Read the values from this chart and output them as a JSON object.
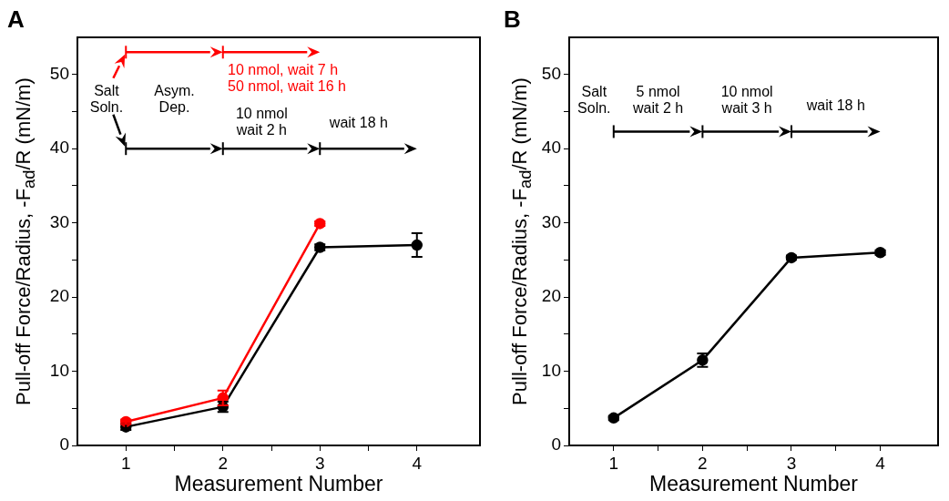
{
  "chart_data": [
    {
      "type": "line",
      "title": "A",
      "xlabel": "Measurement Number",
      "ylabel": "Pull-off Force/Radius, -F$_{ad}$/R (mN/m)",
      "xlim": [
        0.5,
        4.65
      ],
      "ylim": [
        0,
        55
      ],
      "xticks": [
        1,
        {
          "value": 1.5,
          "label": null
        },
        2,
        {
          "value": 2.5,
          "label": null
        },
        3,
        {
          "value": 3.5,
          "label": null
        },
        4
      ],
      "yticks": [
        0,
        {
          "value": 5,
          "label": null
        },
        10,
        {
          "value": 15,
          "label": null
        },
        20,
        {
          "value": 25,
          "label": null
        },
        30,
        {
          "value": 35,
          "label": null
        },
        40,
        {
          "value": 45,
          "label": null
        },
        50
      ],
      "grid": false,
      "legend": false,
      "marker": "circle",
      "line_style": "solid",
      "series": [
        {
          "color": "#000000",
          "x": [
            1,
            2,
            3,
            4
          ],
          "values": [
            2.5,
            5.2,
            26.7,
            27.0
          ],
          "errors": [
            0.4,
            0.7,
            0.4,
            1.6
          ]
        },
        {
          "color": "#ff0000",
          "x": [
            1,
            2,
            3
          ],
          "values": [
            3.2,
            6.4,
            29.9
          ],
          "errors": [
            0.3,
            1.0,
            0.3
          ]
        }
      ],
      "annotations": [
        "Salt\nSoln.",
        "Asym.\nDep.",
        "10 nmol\nwait 2 h",
        "wait 18 h",
        "10 nmol, wait 7 h\n50 nmol, wait 16 h"
      ]
    },
    {
      "type": "line",
      "title": "B",
      "xlabel": "Measurement Number",
      "ylabel": "Pull-off Force/Radius, -F$_{ad}$/R (mN/m)",
      "xlim": [
        0.5,
        4.65
      ],
      "ylim": [
        0,
        55
      ],
      "xticks": [
        1,
        {
          "value": 1.5,
          "label": null
        },
        2,
        {
          "value": 2.5,
          "label": null
        },
        3,
        {
          "value": 3.5,
          "label": null
        },
        4
      ],
      "yticks": [
        0,
        {
          "value": 5,
          "label": null
        },
        10,
        {
          "value": 15,
          "label": null
        },
        20,
        {
          "value": 25,
          "label": null
        },
        30,
        {
          "value": 35,
          "label": null
        },
        40,
        {
          "value": 45,
          "label": null
        },
        50
      ],
      "grid": false,
      "legend": false,
      "marker": "circle",
      "line_style": "solid",
      "series": [
        {
          "color": "#000000",
          "x": [
            1,
            2,
            3,
            4
          ],
          "values": [
            3.7,
            11.5,
            25.3,
            26.0
          ],
          "errors": [
            0.3,
            0.9,
            0.3,
            0.3
          ]
        }
      ],
      "annotations": [
        "Salt\nSoln.",
        "5 nmol\nwait 2 h",
        "10 nmol\nwait 3 h",
        "wait 18 h"
      ]
    }
  ]
}
